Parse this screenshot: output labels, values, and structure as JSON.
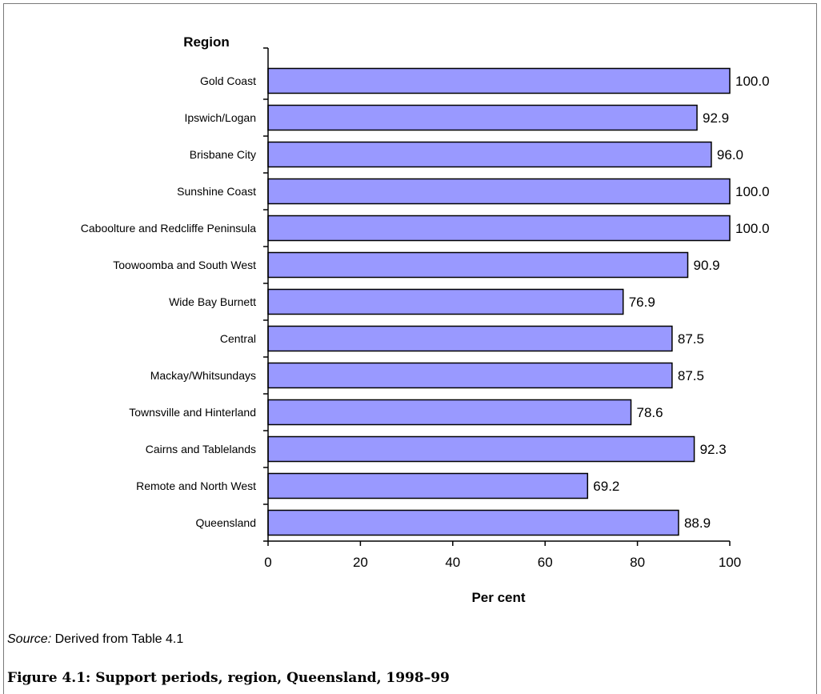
{
  "chart_data": {
    "type": "bar",
    "orientation": "horizontal",
    "categories": [
      "Gold Coast",
      "Ipswich/Logan",
      "Brisbane City",
      "Sunshine Coast",
      "Caboolture and Redcliffe Peninsula",
      "Toowoomba and South West",
      "Wide Bay Burnett",
      "Central",
      "Mackay/Whitsundays",
      "Townsville and Hinterland",
      "Cairns and Tablelands",
      "Remote and North West",
      "Queensland"
    ],
    "values": [
      100.0,
      92.9,
      96.0,
      100.0,
      100.0,
      90.9,
      76.9,
      87.5,
      87.5,
      78.6,
      92.3,
      69.2,
      88.9
    ],
    "data_labels": [
      "100.0",
      "92.9",
      "96.0",
      "100.0",
      "100.0",
      "90.9",
      "76.9",
      "87.5",
      "87.5",
      "78.6",
      "92.3",
      "69.2",
      "88.9"
    ],
    "ylabel": "Region",
    "xlabel": "Per cent",
    "xlim": [
      0,
      100
    ],
    "xticks": [
      0,
      20,
      40,
      60,
      80,
      100
    ],
    "bar_color": "#9999ff",
    "bar_border": "#000000",
    "grid": false,
    "legend": "none"
  },
  "source": {
    "label": "Source:",
    "text": " Derived from Table 4.1"
  },
  "caption": "Figure 4.1: Support periods, region, Queensland, 1998–99"
}
